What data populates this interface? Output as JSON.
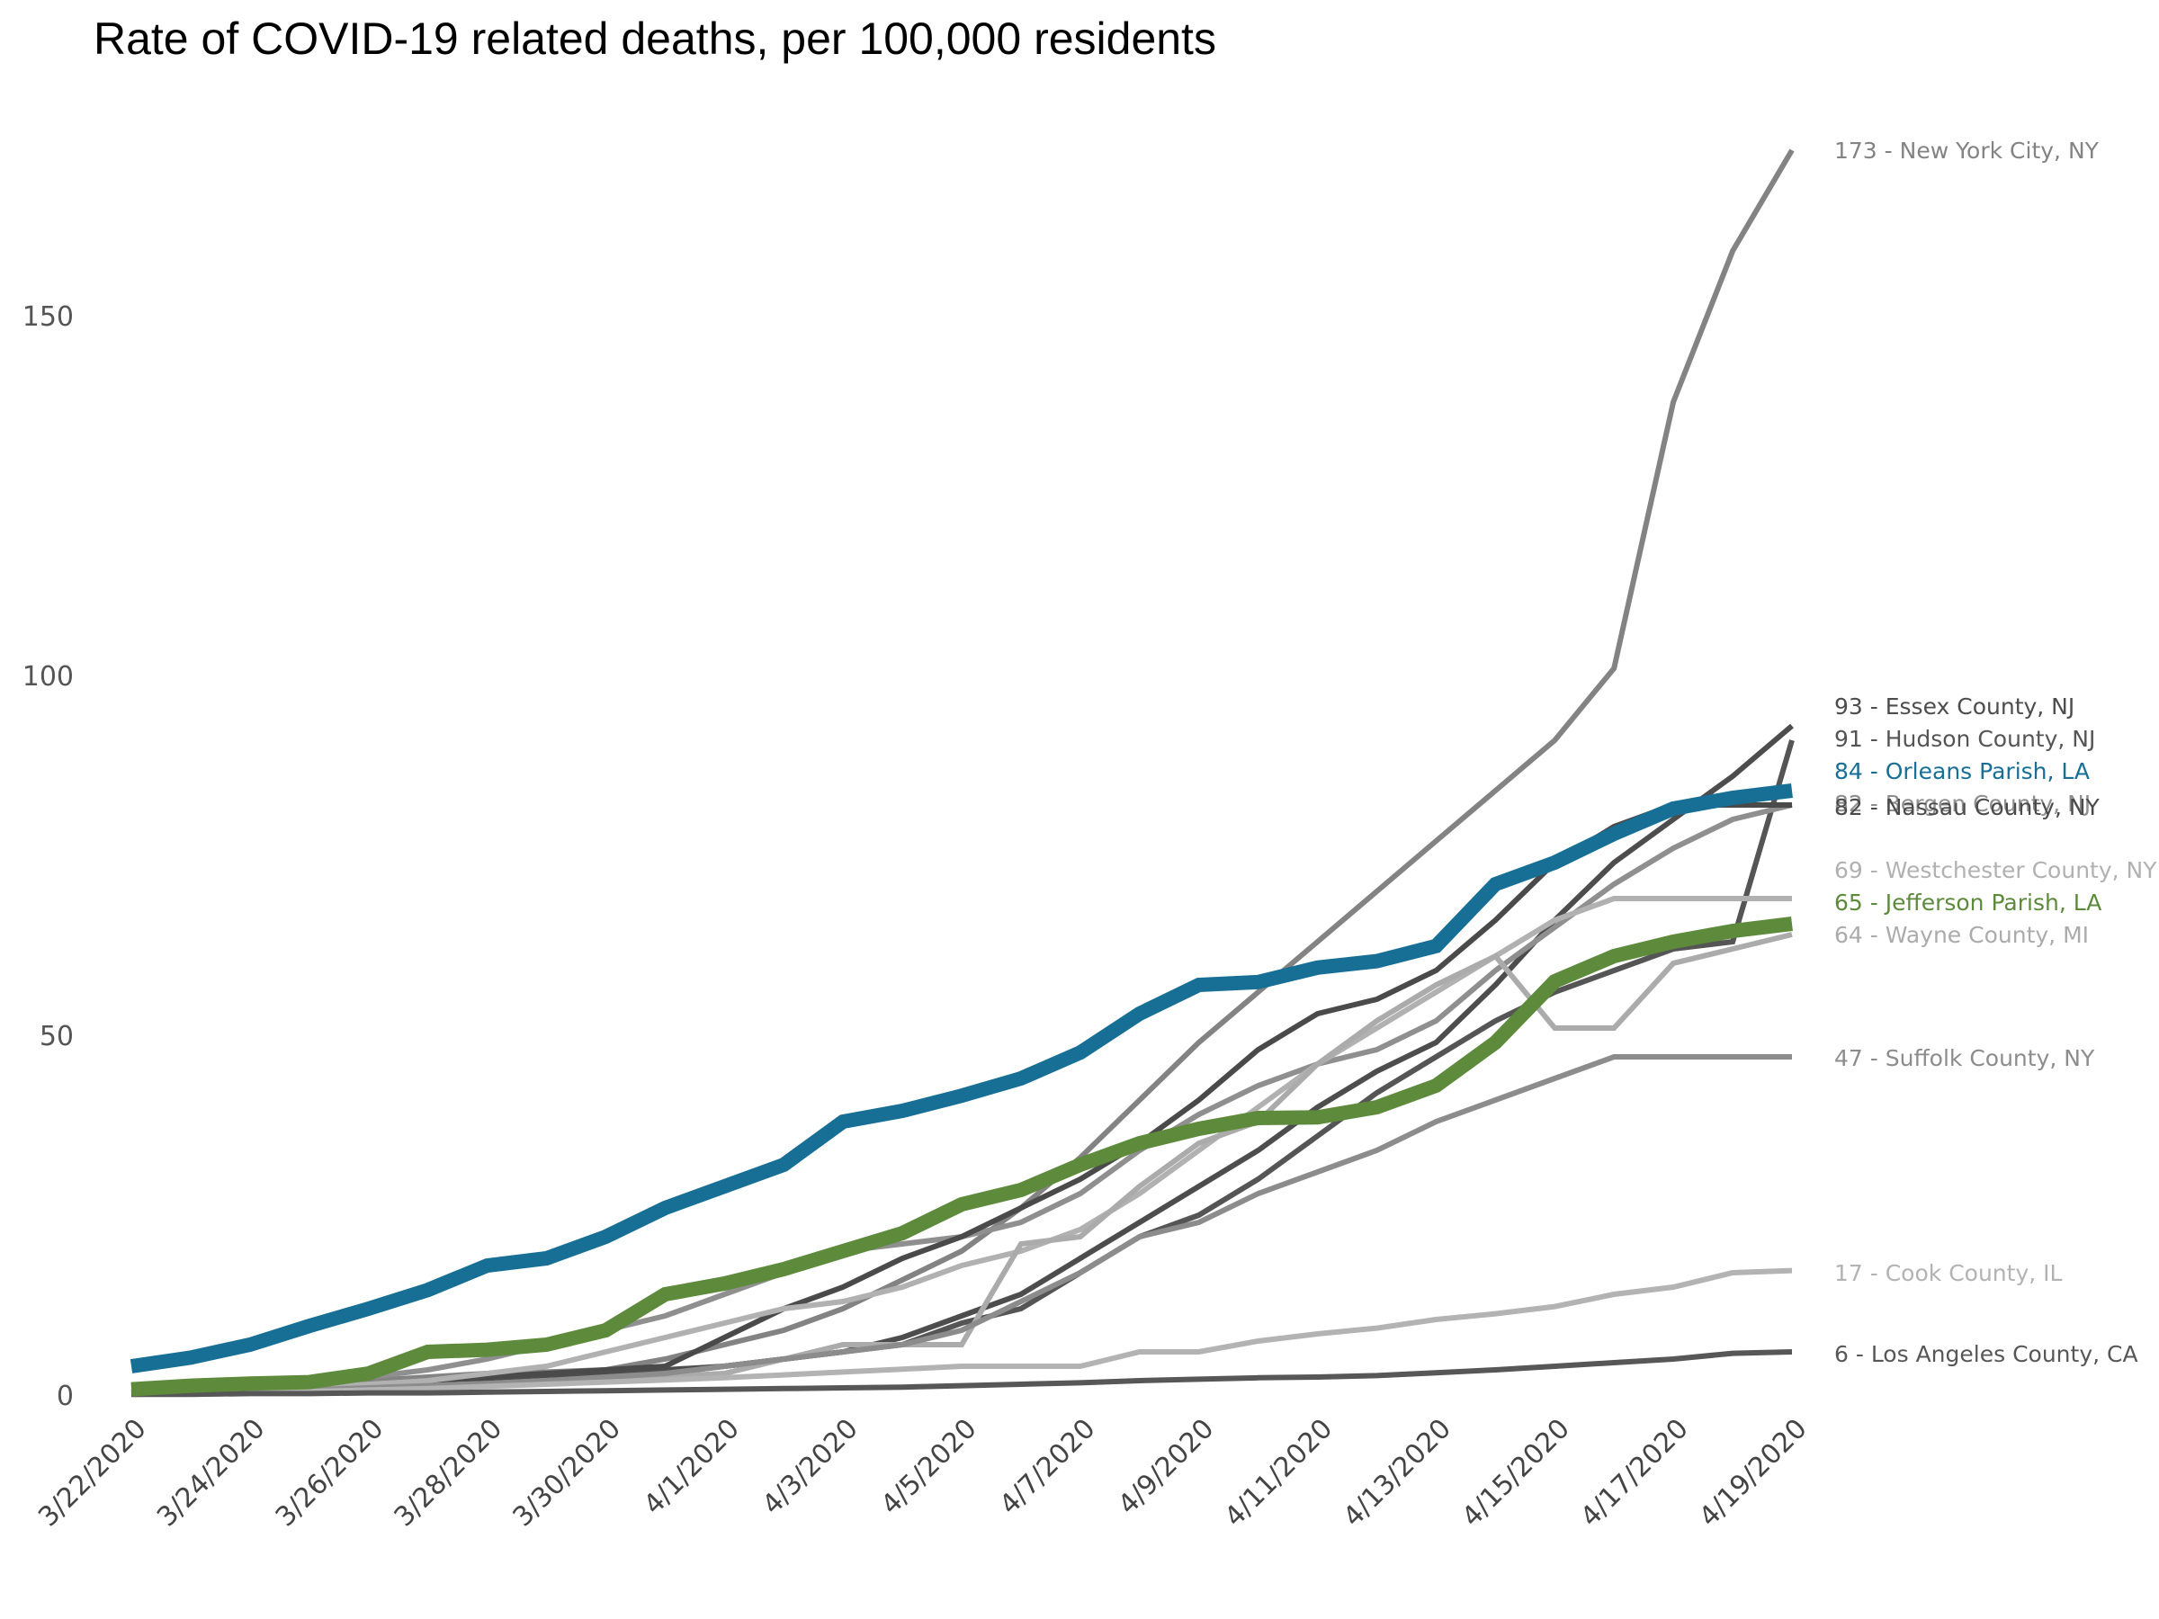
{
  "chart_data": {
    "type": "line",
    "title": "Rate of COVID-19 related deaths, per 100,000 residents",
    "xlabel": "",
    "ylabel": "",
    "ylim": [
      0,
      175
    ],
    "yticks": [
      0,
      50,
      100,
      150
    ],
    "grid": false,
    "legend": "end-of-line labels (right)",
    "x": [
      "3/22/2020",
      "3/23/2020",
      "3/24/2020",
      "3/25/2020",
      "3/26/2020",
      "3/27/2020",
      "3/28/2020",
      "3/29/2020",
      "3/30/2020",
      "3/31/2020",
      "4/1/2020",
      "4/2/2020",
      "4/3/2020",
      "4/4/2020",
      "4/5/2020",
      "4/6/2020",
      "4/7/2020",
      "4/8/2020",
      "4/9/2020",
      "4/10/2020",
      "4/11/2020",
      "4/12/2020",
      "4/13/2020",
      "4/14/2020",
      "4/15/2020",
      "4/16/2020",
      "4/17/2020",
      "4/18/2020",
      "4/19/2020"
    ],
    "xtick_labels": [
      "3/22/2020",
      "3/24/2020",
      "3/26/2020",
      "3/28/2020",
      "3/30/2020",
      "4/1/2020",
      "4/3/2020",
      "4/5/2020",
      "4/7/2020",
      "4/9/2020",
      "4/11/2020",
      "4/13/2020",
      "4/15/2020",
      "4/17/2020",
      "4/19/2020"
    ],
    "series": [
      {
        "name": "New York City, NY",
        "label": "173 - New York City, NY",
        "color": "#838383",
        "width": "thin",
        "values": [
          0.5,
          0.8,
          1,
          1.5,
          2,
          2.5,
          3,
          3.2,
          3.5,
          5,
          7,
          9,
          12,
          16,
          20,
          26,
          33,
          41,
          49,
          56,
          63,
          70,
          77,
          84,
          91,
          101,
          138,
          159,
          173
        ]
      },
      {
        "name": "Essex County, NJ",
        "label": "93 - Essex County, NJ",
        "color": "#4d4d4d",
        "width": "thin",
        "values": [
          0.3,
          0.5,
          0.7,
          1,
          1.3,
          1.6,
          2,
          2.5,
          3,
          3.5,
          4,
          5,
          6,
          8,
          11,
          14,
          19,
          24,
          29,
          34,
          40,
          45,
          49,
          57,
          66,
          74,
          80,
          86,
          93
        ]
      },
      {
        "name": "Hudson County, NJ",
        "label": "91 - Hudson County, NJ",
        "color": "#555555",
        "width": "thin",
        "values": [
          0.2,
          0.3,
          0.5,
          0.7,
          1,
          1.3,
          1.6,
          2,
          2.5,
          3,
          4,
          5,
          6,
          7,
          10,
          12,
          17,
          22,
          25,
          30,
          36,
          42,
          47,
          52,
          56,
          59,
          62,
          63,
          91
        ]
      },
      {
        "name": "Orleans Parish, LA",
        "label": "84 - Orleans Parish, LA",
        "color": "#176f96",
        "width": "thick",
        "values": [
          4,
          5.2,
          7,
          9.6,
          12,
          14.6,
          18,
          19,
          22,
          26,
          29,
          32,
          38,
          39.5,
          41.6,
          44,
          47.6,
          53,
          57,
          57.4,
          59.4,
          60.3,
          62.4,
          71,
          74,
          78,
          81.5,
          83,
          84
        ]
      },
      {
        "name": "Bergen County, NJ",
        "label": "82 - Bergen County, NJ",
        "color": "#8f8f8f",
        "width": "thin",
        "values": [
          0.4,
          0.7,
          1,
          1.5,
          2.5,
          3.5,
          5,
          7,
          9,
          11,
          14,
          17,
          20,
          21,
          22,
          24,
          28,
          34,
          39,
          43,
          46,
          48,
          52,
          59,
          65,
          71,
          76,
          80,
          82
        ]
      },
      {
        "name": "Nassau County, NY",
        "label": "82 - Nassau County, NY",
        "color": "#4a4a4a",
        "width": "thin",
        "values": [
          0.3,
          0.5,
          0.8,
          1,
          1.5,
          2,
          2.5,
          3,
          3.5,
          4,
          8,
          12,
          15,
          19,
          22,
          26,
          30,
          35,
          41,
          48,
          53,
          55,
          59,
          66,
          74,
          79,
          82,
          82,
          82
        ]
      },
      {
        "name": "Westchester County, NY",
        "label": "69 - Westchester County, NY",
        "color": "#b1b1b1",
        "width": "thin",
        "values": [
          0.3,
          0.5,
          0.8,
          1,
          1.5,
          2,
          3,
          4,
          6,
          8,
          10,
          12,
          13,
          15,
          18,
          20,
          23,
          28,
          34,
          40,
          46,
          51,
          56,
          61,
          66,
          69,
          69,
          69,
          69
        ]
      },
      {
        "name": "Jefferson Parish, LA",
        "label": "65 - Jefferson Parish, LA",
        "color": "#5e8a3c",
        "width": "thick",
        "values": [
          0.8,
          1.3,
          1.6,
          1.8,
          3,
          6,
          6.3,
          7,
          9,
          14,
          15.5,
          17.5,
          20,
          22.5,
          26.5,
          28.5,
          32,
          35,
          37,
          38.5,
          38.6,
          40,
          43,
          49,
          57.5,
          61,
          63,
          64.5,
          65.5
        ]
      },
      {
        "name": "Wayne County, MI",
        "label": "64 - Wayne County, MI",
        "color": "#ababab",
        "width": "thin",
        "values": [
          0.2,
          0.3,
          0.5,
          0.7,
          1,
          1.3,
          1.6,
          2,
          2.3,
          2.6,
          3,
          5,
          7,
          7,
          7,
          21,
          22,
          29,
          35,
          38,
          46,
          52,
          57,
          61,
          51,
          51,
          60,
          62,
          64
        ]
      },
      {
        "name": "Suffolk County, NY",
        "label": "47 - Suffolk County, NY",
        "color": "#8c8c8c",
        "width": "thin",
        "values": [
          0.2,
          0.3,
          0.5,
          0.7,
          1,
          1.3,
          1.6,
          2,
          2.5,
          3,
          4,
          5,
          6,
          7,
          9,
          13,
          17,
          22,
          24,
          28,
          31,
          34,
          38,
          41,
          44,
          47,
          47,
          47,
          47
        ]
      },
      {
        "name": "Cook County, IL",
        "label": "17 - Cook County, IL",
        "color": "#b3b3b3",
        "width": "thin",
        "values": [
          0.1,
          0.2,
          0.3,
          0.5,
          0.7,
          0.9,
          1.2,
          1.5,
          1.8,
          2.1,
          2.4,
          2.8,
          3.2,
          3.6,
          4,
          4,
          4,
          6,
          6,
          7.5,
          8.5,
          9.3,
          10.5,
          11.3,
          12.3,
          14,
          15,
          17,
          17.3
        ]
      },
      {
        "name": "Los Angeles County, CA",
        "label": "6 - Los Angeles County, CA",
        "color": "#575757",
        "width": "thin",
        "values": [
          0.1,
          0.1,
          0.2,
          0.2,
          0.3,
          0.3,
          0.4,
          0.5,
          0.6,
          0.7,
          0.8,
          0.9,
          1,
          1.1,
          1.3,
          1.5,
          1.7,
          2,
          2.2,
          2.4,
          2.5,
          2.7,
          3.1,
          3.5,
          4,
          4.5,
          5,
          5.8,
          6
        ]
      }
    ]
  }
}
